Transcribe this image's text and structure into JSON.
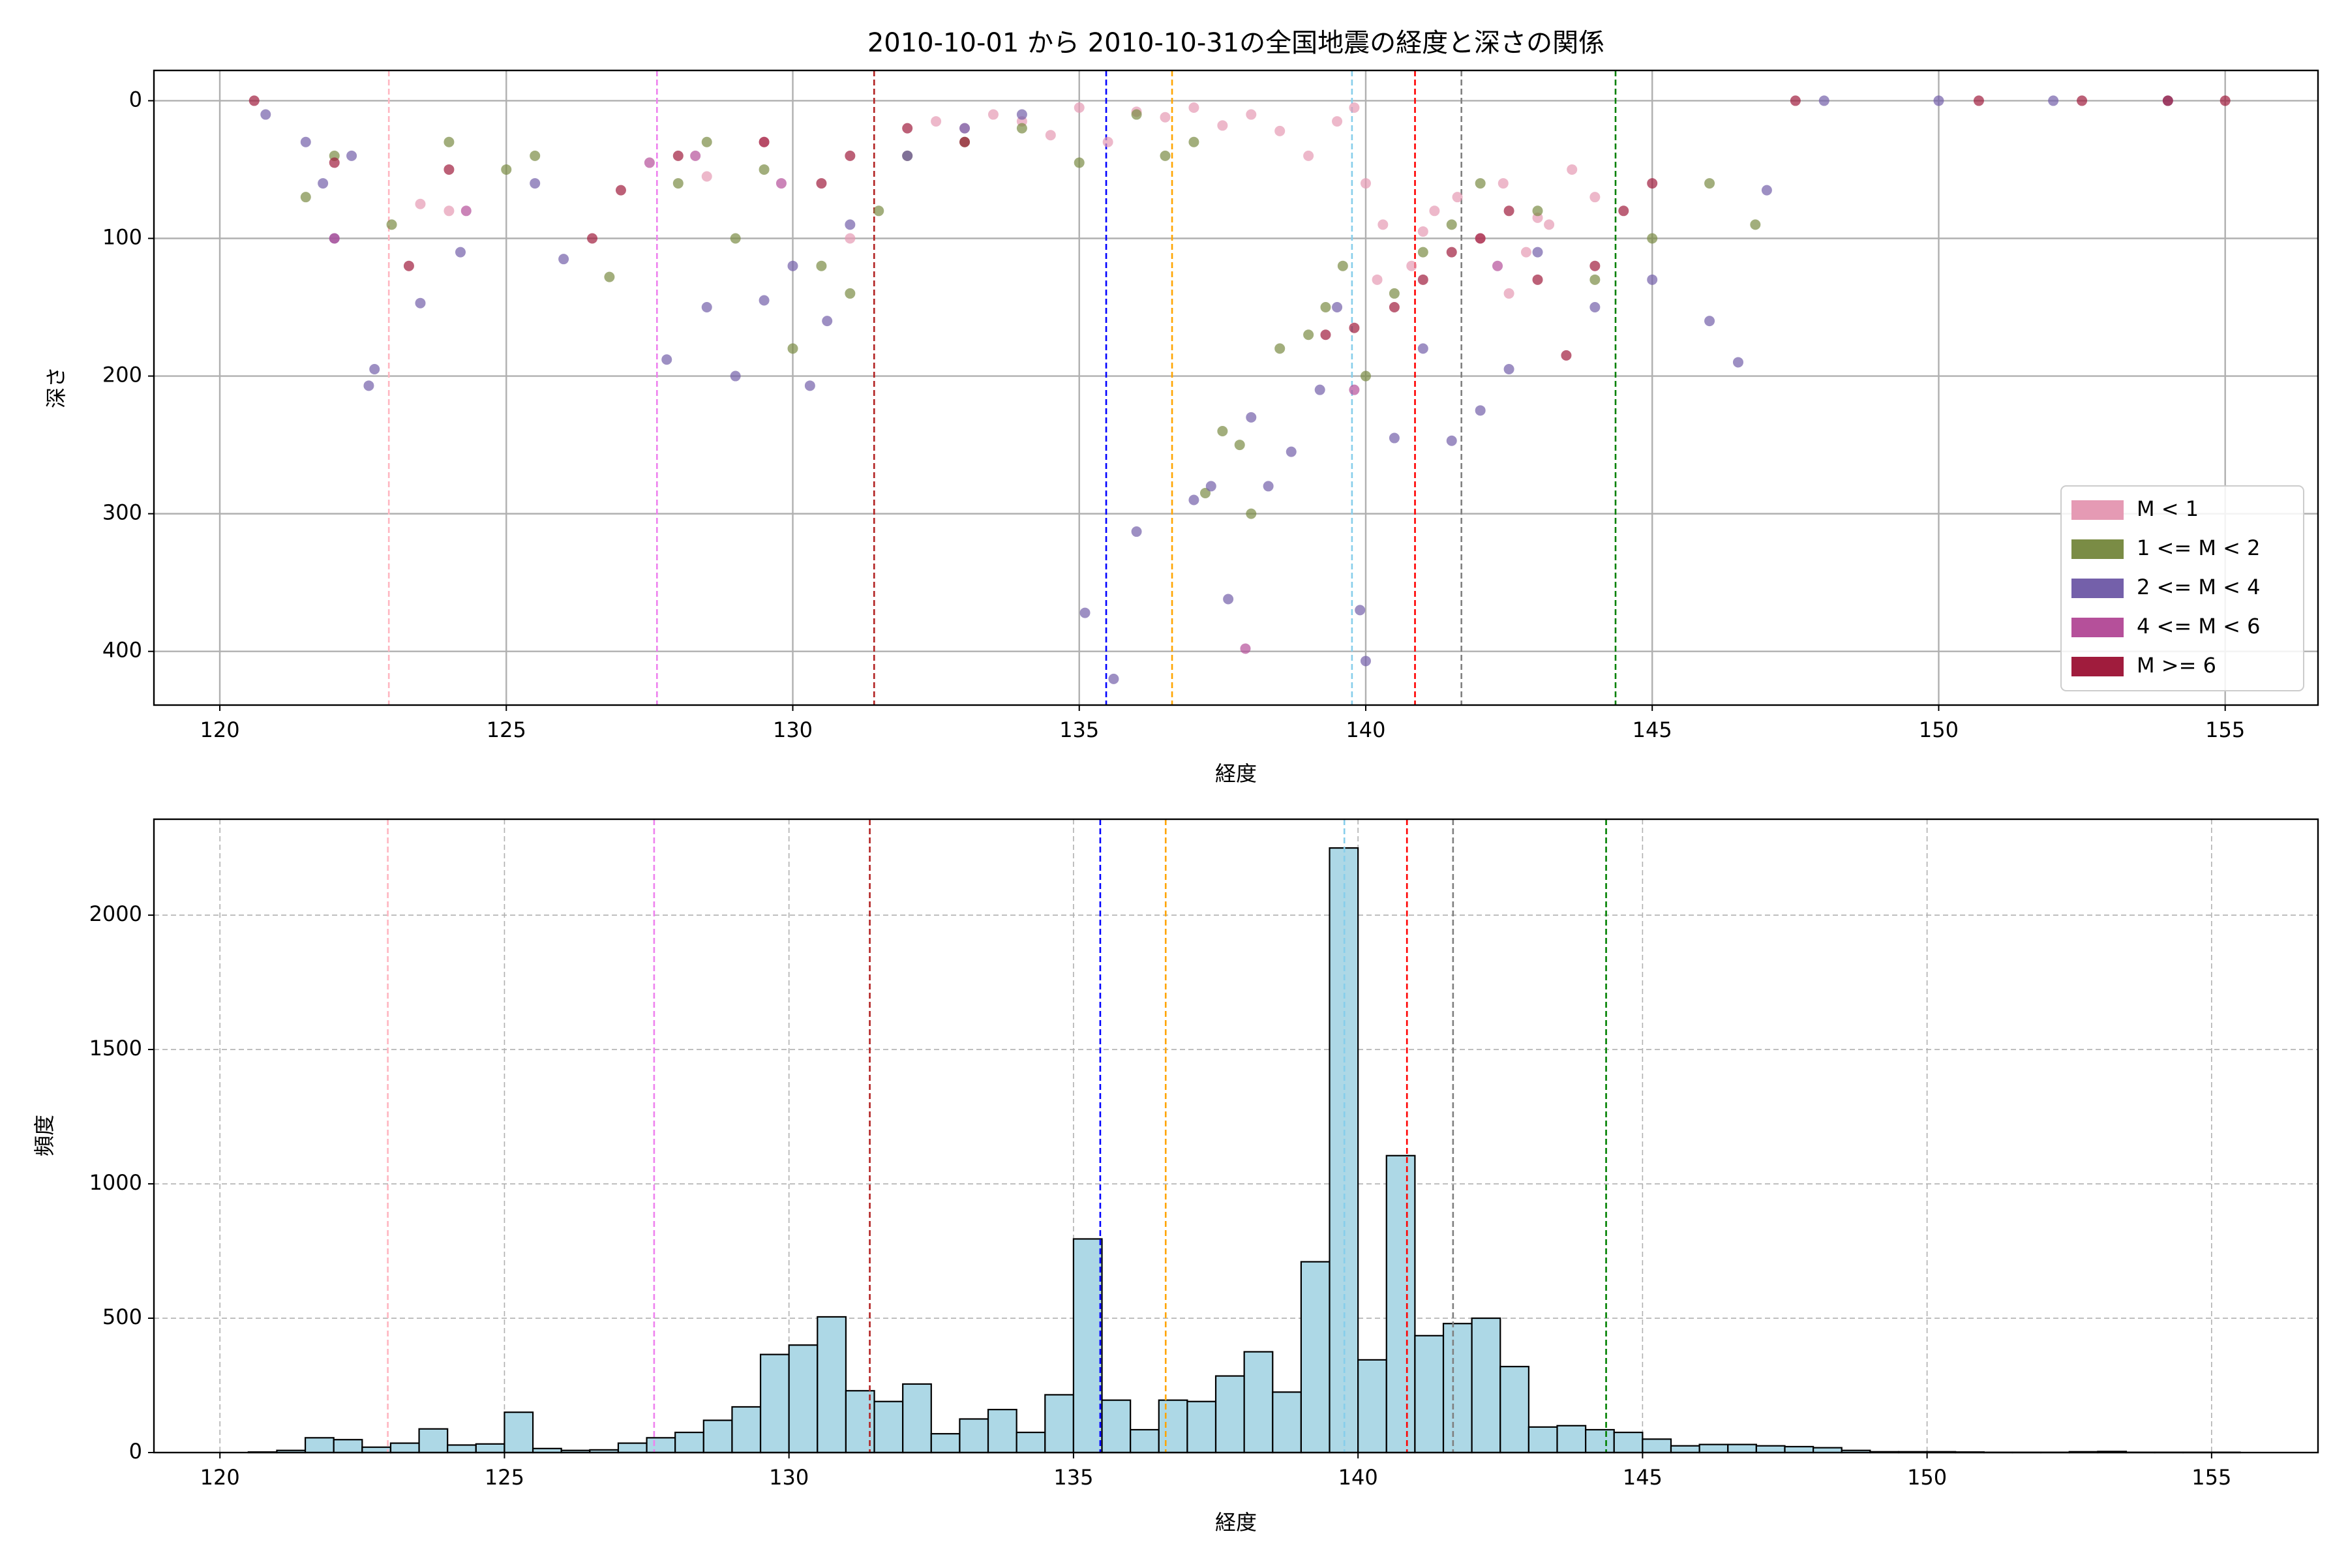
{
  "chart_data": [
    {
      "type": "scatter",
      "title": "2010-10-01 から 2010-10-31の全国地震の経度と深さの関係",
      "xlabel": "経度",
      "ylabel": "深さ",
      "xlim": [
        118.85,
        156.62
      ],
      "ylim": [
        -22,
        439
      ],
      "y_inverted": true,
      "xticks": [
        120,
        125,
        130,
        135,
        140,
        145,
        150,
        155
      ],
      "yticks": [
        0,
        100,
        200,
        300,
        400
      ],
      "grid": true,
      "grid_style": "solid",
      "legend": "lower right",
      "alpha": 0.7,
      "vlines": [
        {
          "x": 122.95,
          "color": "#ffb6c1"
        },
        {
          "x": 127.63,
          "color": "#ee82ee"
        },
        {
          "x": 131.42,
          "color": "#b22222"
        },
        {
          "x": 135.47,
          "color": "#0000ff"
        },
        {
          "x": 136.62,
          "color": "#ffa500"
        },
        {
          "x": 139.76,
          "color": "#87ceeb"
        },
        {
          "x": 140.86,
          "color": "#ff0000"
        },
        {
          "x": 141.67,
          "color": "#808080"
        },
        {
          "x": 144.36,
          "color": "#008000"
        }
      ],
      "series": [
        {
          "name": "M < 1",
          "color": "#e59ab4",
          "x": [
            133,
            133.5,
            134,
            134.5,
            135,
            135.5,
            136,
            136.5,
            137,
            137.5,
            138,
            138.5,
            139,
            139.5,
            140,
            140.3,
            140.8,
            141.2,
            141.6,
            142,
            142.4,
            142.8,
            143.2,
            143.6,
            144,
            123.5,
            124,
            128.5,
            129.5,
            131,
            132,
            132.5,
            139.8,
            140.2,
            141,
            142.5,
            143
          ],
          "values": [
            20,
            10,
            15,
            25,
            5,
            30,
            8,
            12,
            5,
            18,
            10,
            22,
            40,
            15,
            60,
            90,
            120,
            80,
            70,
            100,
            60,
            110,
            90,
            50,
            70,
            75,
            80,
            55,
            30,
            100,
            40,
            15,
            5,
            130,
            95,
            140,
            85
          ]
        },
        {
          "name": "1 <= M < 2",
          "color": "#7a8c45",
          "x": [
            121.5,
            122,
            123,
            124,
            125,
            125.5,
            126.8,
            128,
            128.5,
            129,
            129.5,
            130,
            130.5,
            131,
            131.5,
            132,
            133,
            134,
            135,
            136,
            137,
            137.5,
            137.8,
            138.5,
            139,
            139.3,
            139.6,
            140,
            140.5,
            141,
            141.5,
            142,
            143,
            144,
            145,
            146,
            146.8,
            137.2,
            138,
            136.5
          ],
          "values": [
            70,
            40,
            90,
            30,
            50,
            40,
            128,
            60,
            30,
            100,
            50,
            180,
            120,
            140,
            80,
            40,
            30,
            20,
            45,
            10,
            30,
            240,
            250,
            180,
            170,
            150,
            120,
            200,
            140,
            110,
            90,
            60,
            80,
            130,
            100,
            60,
            90,
            285,
            300,
            40
          ]
        },
        {
          "name": "2 <= M < 4",
          "color": "#7460aa",
          "x": [
            120.8,
            121.5,
            121.8,
            122,
            122.3,
            122.6,
            122.7,
            123.5,
            124.2,
            125.5,
            126,
            127.8,
            128.5,
            129,
            129.5,
            130,
            130.3,
            130.6,
            131,
            132,
            133,
            134,
            135.1,
            135.6,
            136,
            137,
            137.3,
            137.6,
            138,
            138.3,
            138.7,
            139.2,
            139.5,
            139.9,
            140,
            140.5,
            141,
            141.5,
            142,
            142.5,
            143,
            144,
            145,
            146,
            146.5,
            147,
            148,
            150,
            152,
            154
          ],
          "values": [
            10,
            30,
            60,
            100,
            40,
            207,
            195,
            147,
            110,
            60,
            115,
            188,
            150,
            200,
            145,
            120,
            207,
            160,
            90,
            40,
            20,
            10,
            372,
            420,
            313,
            290,
            280,
            362,
            230,
            280,
            255,
            210,
            150,
            370,
            407,
            245,
            180,
            247,
            225,
            195,
            110,
            150,
            130,
            160,
            190,
            65,
            0,
            0,
            0,
            0
          ]
        },
        {
          "name": "4 <= M < 6",
          "color": "#b5509a",
          "x": [
            122,
            124.3,
            127.5,
            128.3,
            129.8,
            137.9,
            139.8,
            142.3
          ],
          "values": [
            100,
            80,
            45,
            40,
            60,
            398,
            210,
            120
          ]
        },
        {
          "name": "M >= 6",
          "color": "#a01c3d",
          "x": [
            120.6,
            122,
            123.3,
            124,
            126.5,
            127,
            128,
            129.5,
            130.5,
            131,
            132,
            133,
            139.3,
            139.8,
            140.5,
            141,
            141.5,
            142,
            142.5,
            143,
            143.5,
            144,
            144.5,
            145,
            147.5,
            150.7,
            152.5,
            154,
            155
          ],
          "values": [
            0,
            45,
            120,
            50,
            100,
            65,
            40,
            30,
            60,
            40,
            20,
            30,
            170,
            165,
            150,
            130,
            110,
            100,
            80,
            130,
            185,
            120,
            80,
            60,
            0,
            0,
            0,
            0,
            0
          ]
        }
      ]
    },
    {
      "type": "histogram",
      "xlabel": "経度",
      "ylabel": "頻度",
      "xlim": [
        118.84,
        156.87
      ],
      "ylim": [
        0,
        2357
      ],
      "xticks": [
        120,
        125,
        130,
        135,
        140,
        145,
        150,
        155
      ],
      "yticks": [
        0,
        500,
        1000,
        1500,
        2000
      ],
      "grid": true,
      "grid_style": "dashed",
      "color": "#add8e6",
      "edgecolor": "#000000",
      "vlines": [
        {
          "x": 122.95,
          "color": "#ffb6c1"
        },
        {
          "x": 127.63,
          "color": "#ee82ee"
        },
        {
          "x": 131.42,
          "color": "#b22222"
        },
        {
          "x": 135.47,
          "color": "#0000ff"
        },
        {
          "x": 136.62,
          "color": "#ffa500"
        },
        {
          "x": 139.76,
          "color": "#87ceeb"
        },
        {
          "x": 140.86,
          "color": "#ff0000"
        },
        {
          "x": 141.67,
          "color": "#808080"
        },
        {
          "x": 144.36,
          "color": "#008000"
        }
      ],
      "bins": [
        120.5,
        121,
        121.5,
        122,
        122.5,
        123,
        123.5,
        124,
        124.5,
        125,
        125.5,
        126,
        126.5,
        127,
        127.5,
        128,
        128.5,
        129,
        129.5,
        130,
        130.5,
        131,
        131.5,
        132,
        132.5,
        133,
        133.5,
        134,
        134.5,
        135,
        135.5,
        136,
        136.5,
        137,
        137.5,
        138,
        138.5,
        139,
        139.5,
        140,
        140.5,
        141,
        141.5,
        142,
        142.5,
        143,
        143.5,
        144,
        144.5,
        145,
        145.5,
        146,
        146.5,
        147,
        147.5,
        148,
        148.5,
        149,
        149.5,
        150,
        150.5,
        151,
        151.5,
        152,
        152.5,
        153,
        153.5,
        154,
        154.5,
        155,
        155.5
      ],
      "values": [
        2,
        8,
        55,
        48,
        20,
        35,
        88,
        28,
        32,
        150,
        15,
        8,
        10,
        35,
        55,
        75,
        120,
        170,
        365,
        400,
        505,
        230,
        190,
        255,
        70,
        125,
        160,
        75,
        215,
        795,
        195,
        85,
        195,
        190,
        285,
        375,
        225,
        710,
        2250,
        345,
        1105,
        435,
        480,
        500,
        320,
        95,
        100,
        85,
        75,
        50,
        25,
        30,
        30,
        25,
        22,
        18,
        8,
        3,
        3,
        3,
        2,
        1,
        1,
        1,
        3,
        4,
        1,
        1,
        1,
        1
      ]
    }
  ]
}
